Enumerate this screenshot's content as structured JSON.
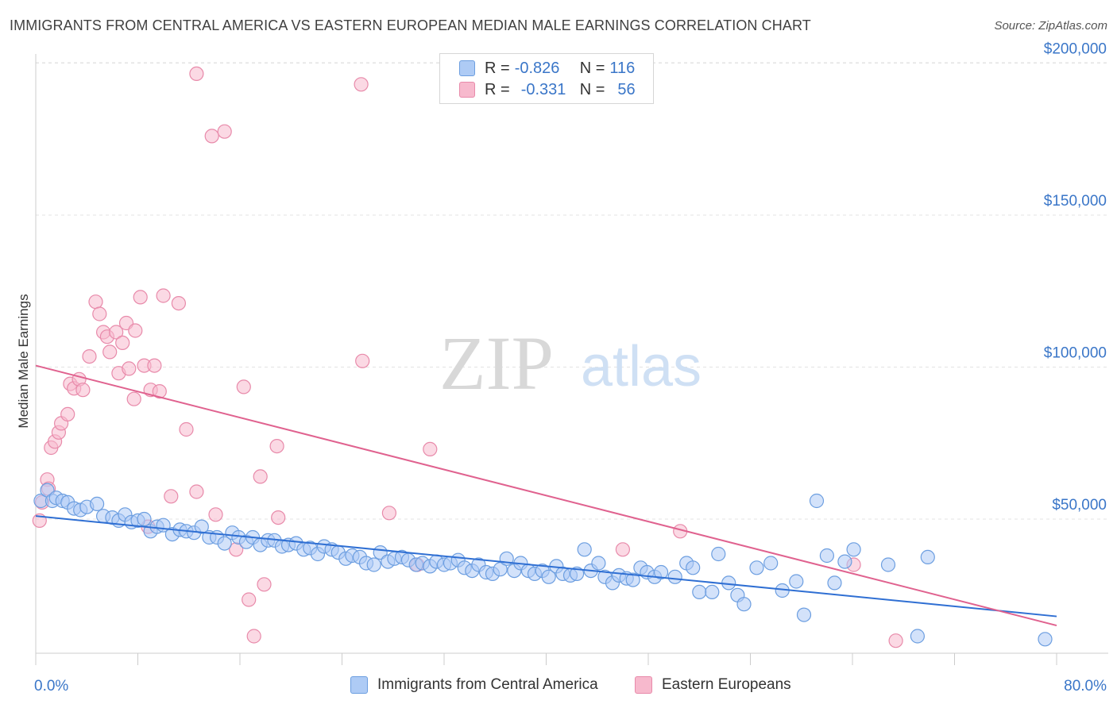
{
  "header": {
    "title": "IMMIGRANTS FROM CENTRAL AMERICA VS EASTERN EUROPEAN MEDIAN MALE EARNINGS CORRELATION CHART",
    "source": "Source: ZipAtlas.com"
  },
  "watermark": {
    "zip": "ZIP",
    "atlas": "atlas"
  },
  "legend": {
    "rows": [
      {
        "r_label": "R =",
        "r_value": "-0.826",
        "n_label": "N =",
        "n_value": "116",
        "color": "#aecbf5"
      },
      {
        "r_label": "R =",
        "r_value": "-0.331",
        "n_label": "N =",
        "n_value": "56",
        "color": "#f7b9cd"
      }
    ]
  },
  "bottom_legend": {
    "series1": "Immigrants from Central America",
    "series2": "Eastern Europeans"
  },
  "colors": {
    "blue_fill": "#aecbf5",
    "blue_stroke": "#6c9ee0",
    "blue_line": "#2f6fd3",
    "pink_fill": "#f7b9cd",
    "pink_stroke": "#e88aaa",
    "pink_line": "#e0628f",
    "tick_label": "#3a76c8"
  },
  "chart_data": {
    "type": "scatter",
    "title": "IMMIGRANTS FROM CENTRAL AMERICA VS EASTERN EUROPEAN MEDIAN MALE EARNINGS CORRELATION CHART",
    "xlabel": "",
    "ylabel": "Median Male Earnings",
    "xlim": [
      0,
      80
    ],
    "ylim": [
      8000,
      210000
    ],
    "x_tick_labels": [
      "0.0%",
      "80.0%"
    ],
    "y_ticks": [
      50000,
      100000,
      150000,
      200000
    ],
    "y_tick_labels": [
      "$50,000",
      "$100,000",
      "$150,000",
      "$200,000"
    ],
    "grid": "horizontal dashed",
    "legend_position": "top-center",
    "series": [
      {
        "name": "Immigrants from Central America",
        "r": -0.826,
        "n": 116,
        "trend": [
          [
            0,
            51000
          ],
          [
            80,
            18000
          ]
        ],
        "points": [
          [
            0.4,
            56000
          ],
          [
            0.9,
            59500
          ],
          [
            1.3,
            56000
          ],
          [
            1.6,
            57000
          ],
          [
            2.1,
            56000
          ],
          [
            2.5,
            55500
          ],
          [
            3.0,
            53500
          ],
          [
            3.5,
            53000
          ],
          [
            4.0,
            54000
          ],
          [
            4.8,
            55000
          ],
          [
            5.3,
            51000
          ],
          [
            6.0,
            50500
          ],
          [
            6.5,
            49500
          ],
          [
            7.0,
            51500
          ],
          [
            7.5,
            49000
          ],
          [
            8.0,
            49500
          ],
          [
            8.5,
            50000
          ],
          [
            9.0,
            46000
          ],
          [
            9.5,
            47500
          ],
          [
            10.0,
            48000
          ],
          [
            10.7,
            45000
          ],
          [
            11.3,
            46500
          ],
          [
            11.8,
            46000
          ],
          [
            12.4,
            45500
          ],
          [
            13.0,
            47500
          ],
          [
            13.6,
            44000
          ],
          [
            14.2,
            44000
          ],
          [
            14.8,
            42000
          ],
          [
            15.4,
            45500
          ],
          [
            15.9,
            44000
          ],
          [
            16.5,
            42500
          ],
          [
            17.0,
            44000
          ],
          [
            17.6,
            41500
          ],
          [
            18.2,
            43000
          ],
          [
            18.7,
            43000
          ],
          [
            19.3,
            41000
          ],
          [
            19.8,
            41500
          ],
          [
            20.4,
            42000
          ],
          [
            21.0,
            40000
          ],
          [
            21.5,
            40500
          ],
          [
            22.1,
            38500
          ],
          [
            22.6,
            41000
          ],
          [
            23.2,
            40000
          ],
          [
            23.7,
            39000
          ],
          [
            24.3,
            37000
          ],
          [
            24.8,
            38000
          ],
          [
            25.4,
            37500
          ],
          [
            25.9,
            35500
          ],
          [
            26.5,
            35000
          ],
          [
            27.0,
            39000
          ],
          [
            27.6,
            36000
          ],
          [
            28.1,
            37000
          ],
          [
            28.7,
            37500
          ],
          [
            29.2,
            36500
          ],
          [
            29.8,
            35000
          ],
          [
            30.3,
            35500
          ],
          [
            30.9,
            34500
          ],
          [
            31.4,
            36000
          ],
          [
            32.0,
            35000
          ],
          [
            32.5,
            35500
          ],
          [
            33.1,
            36500
          ],
          [
            33.6,
            34000
          ],
          [
            34.2,
            33000
          ],
          [
            34.7,
            35000
          ],
          [
            35.3,
            32500
          ],
          [
            35.8,
            32000
          ],
          [
            36.4,
            33500
          ],
          [
            36.9,
            37000
          ],
          [
            37.5,
            33000
          ],
          [
            38.0,
            35500
          ],
          [
            38.6,
            33000
          ],
          [
            39.1,
            32000
          ],
          [
            39.7,
            33000
          ],
          [
            40.2,
            31000
          ],
          [
            40.8,
            34500
          ],
          [
            41.3,
            32000
          ],
          [
            41.9,
            31500
          ],
          [
            42.4,
            32000
          ],
          [
            43.0,
            40000
          ],
          [
            43.5,
            33000
          ],
          [
            44.1,
            35500
          ],
          [
            44.6,
            31000
          ],
          [
            45.2,
            29000
          ],
          [
            45.7,
            31500
          ],
          [
            46.3,
            30500
          ],
          [
            46.8,
            30000
          ],
          [
            47.4,
            34000
          ],
          [
            47.9,
            32500
          ],
          [
            48.5,
            31000
          ],
          [
            49.0,
            32500
          ],
          [
            50.1,
            31000
          ],
          [
            51.0,
            35500
          ],
          [
            51.5,
            34000
          ],
          [
            52.0,
            26000
          ],
          [
            53.0,
            26000
          ],
          [
            53.5,
            38500
          ],
          [
            54.3,
            29000
          ],
          [
            55.0,
            25000
          ],
          [
            55.5,
            22000
          ],
          [
            56.5,
            34000
          ],
          [
            57.6,
            35500
          ],
          [
            58.5,
            26500
          ],
          [
            59.6,
            29500
          ],
          [
            60.2,
            18500
          ],
          [
            61.2,
            56000
          ],
          [
            62.0,
            38000
          ],
          [
            62.6,
            29000
          ],
          [
            63.4,
            36000
          ],
          [
            64.1,
            40000
          ],
          [
            66.8,
            35000
          ],
          [
            69.1,
            11500
          ],
          [
            69.9,
            37500
          ],
          [
            79.1,
            10500
          ]
        ]
      },
      {
        "name": "Eastern Europeans",
        "r": -0.331,
        "n": 56,
        "trend": [
          [
            0,
            100500
          ],
          [
            80,
            15000
          ]
        ],
        "points": [
          [
            0.3,
            49500
          ],
          [
            0.5,
            55500
          ],
          [
            0.9,
            63000
          ],
          [
            1.0,
            60000
          ],
          [
            1.2,
            73500
          ],
          [
            1.5,
            75500
          ],
          [
            1.8,
            78500
          ],
          [
            2.0,
            81500
          ],
          [
            2.5,
            84500
          ],
          [
            2.7,
            94500
          ],
          [
            3.0,
            93000
          ],
          [
            3.4,
            96000
          ],
          [
            3.7,
            92500
          ],
          [
            4.2,
            103500
          ],
          [
            4.7,
            121500
          ],
          [
            5.0,
            117500
          ],
          [
            5.3,
            111500
          ],
          [
            5.6,
            110000
          ],
          [
            5.8,
            105000
          ],
          [
            6.3,
            111500
          ],
          [
            6.5,
            98000
          ],
          [
            6.8,
            108000
          ],
          [
            7.1,
            114500
          ],
          [
            7.3,
            99500
          ],
          [
            7.7,
            89500
          ],
          [
            7.8,
            112000
          ],
          [
            8.2,
            123000
          ],
          [
            8.5,
            100500
          ],
          [
            8.8,
            47500
          ],
          [
            9.3,
            100500
          ],
          [
            9.0,
            92500
          ],
          [
            9.7,
            92000
          ],
          [
            10.0,
            123500
          ],
          [
            10.6,
            57500
          ],
          [
            11.2,
            121000
          ],
          [
            11.8,
            79500
          ],
          [
            12.6,
            59000
          ],
          [
            12.6,
            196500
          ],
          [
            13.8,
            176000
          ],
          [
            14.1,
            51500
          ],
          [
            14.8,
            177500
          ],
          [
            15.7,
            40000
          ],
          [
            16.3,
            93500
          ],
          [
            16.7,
            23500
          ],
          [
            17.1,
            11500
          ],
          [
            17.6,
            64000
          ],
          [
            17.9,
            28500
          ],
          [
            18.9,
            74000
          ],
          [
            19.0,
            50500
          ],
          [
            25.5,
            193000
          ],
          [
            25.6,
            102000
          ],
          [
            27.7,
            52000
          ],
          [
            29.9,
            35000
          ],
          [
            30.9,
            73000
          ],
          [
            46.0,
            40000
          ],
          [
            50.5,
            46000
          ],
          [
            64.1,
            35000
          ],
          [
            67.4,
            10000
          ]
        ]
      }
    ]
  }
}
